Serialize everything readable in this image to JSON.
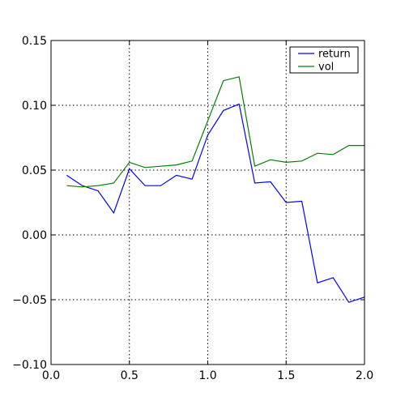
{
  "chart_data": {
    "type": "line",
    "title": "",
    "xlabel": "",
    "ylabel": "",
    "xlim": [
      0.0,
      2.0
    ],
    "ylim": [
      -0.1,
      0.15
    ],
    "xticks": [
      0.0,
      0.5,
      1.0,
      1.5,
      2.0
    ],
    "yticks": [
      -0.1,
      -0.05,
      0.0,
      0.05,
      0.1,
      0.15
    ],
    "xtick_labels": [
      "0.0",
      "0.5",
      "1.0",
      "1.5",
      "2.0"
    ],
    "ytick_labels": [
      "−0.10",
      "−0.05",
      "0.00",
      "0.05",
      "0.10",
      "0.15"
    ],
    "grid": true,
    "legend_position": "top-right",
    "x": [
      0.1,
      0.2,
      0.3,
      0.4,
      0.5,
      0.6,
      0.7,
      0.8,
      0.9,
      1.0,
      1.1,
      1.2,
      1.3,
      1.4,
      1.5,
      1.6,
      1.7,
      1.8,
      1.9,
      2.0
    ],
    "series": [
      {
        "name": "return",
        "color": "#0000ff",
        "values": [
          0.046,
          0.038,
          0.034,
          0.017,
          0.051,
          0.038,
          0.038,
          0.046,
          0.043,
          0.077,
          0.096,
          0.101,
          0.04,
          0.041,
          0.025,
          0.026,
          -0.037,
          -0.033,
          -0.052,
          -0.048
        ]
      },
      {
        "name": "vol",
        "color": "#008000",
        "values": [
          0.038,
          0.037,
          0.038,
          0.04,
          0.056,
          0.052,
          0.053,
          0.054,
          0.057,
          0.088,
          0.119,
          0.122,
          0.053,
          0.058,
          0.056,
          0.057,
          0.063,
          0.062,
          0.069,
          0.069
        ]
      }
    ]
  }
}
